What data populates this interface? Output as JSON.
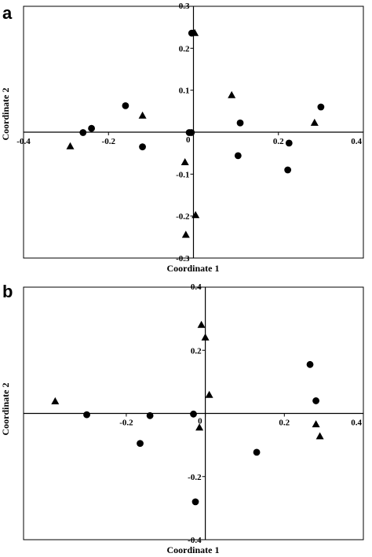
{
  "chart_data": [
    {
      "type": "scatter",
      "panel_label": "a",
      "xlabel": "Coordinate 1",
      "ylabel": "Coordinate 2",
      "xlim": [
        -0.4,
        0.4
      ],
      "ylim": [
        -0.3,
        0.3
      ],
      "x_ticks": [
        -0.4,
        -0.2,
        0,
        0.2,
        0.4
      ],
      "y_ticks": [
        -0.3,
        -0.2,
        -0.1,
        0,
        0.1,
        0.2,
        0.3
      ],
      "x_tick_labels": [
        "-0.4",
        "-0.2",
        "0",
        "0.2",
        "0.4"
      ],
      "y_tick_labels": [
        "-0.3",
        "-0.2",
        "-0.1",
        "0",
        "0.1",
        "0.2",
        "0.3"
      ],
      "series": [
        {
          "marker": "circle",
          "points": [
            [
              -0.004,
              0.236
            ],
            [
              -0.16,
              0.063
            ],
            [
              -0.24,
              0.009
            ],
            [
              -0.26,
              -0.001
            ],
            [
              -0.12,
              -0.035
            ],
            [
              -0.01,
              -0.001
            ],
            [
              -0.005,
              -0.001
            ],
            [
              0.11,
              0.022
            ],
            [
              0.3,
              0.06
            ],
            [
              0.225,
              -0.026
            ],
            [
              0.105,
              -0.056
            ],
            [
              0.222,
              -0.09
            ]
          ]
        },
        {
          "marker": "triangle",
          "points": [
            [
              0.003,
              0.236
            ],
            [
              -0.12,
              0.039
            ],
            [
              -0.29,
              -0.034
            ],
            [
              0.09,
              0.088
            ],
            [
              0.285,
              0.022
            ],
            [
              -0.02,
              -0.072
            ],
            [
              0.005,
              -0.198
            ],
            [
              -0.018,
              -0.245
            ]
          ]
        }
      ]
    },
    {
      "type": "scatter",
      "panel_label": "b",
      "xlabel": "Coordinate 1",
      "ylabel": "Coordinate 2",
      "xlim": [
        -0.46,
        0.4
      ],
      "ylim": [
        -0.4,
        0.4
      ],
      "x_ticks": [
        -0.2,
        0,
        0.2,
        0.4
      ],
      "y_ticks": [
        -0.4,
        -0.2,
        0,
        0.2,
        0.4
      ],
      "x_tick_labels": [
        "-0.2",
        "0",
        "0.2",
        "0.4"
      ],
      "y_tick_labels": [
        "-0.4",
        "-0.2",
        "0",
        "0.2",
        "0.4"
      ],
      "series": [
        {
          "marker": "circle",
          "points": [
            [
              -0.3,
              -0.004
            ],
            [
              -0.14,
              -0.007
            ],
            [
              -0.165,
              -0.095
            ],
            [
              -0.03,
              -0.002
            ],
            [
              -0.025,
              -0.28
            ],
            [
              0.265,
              0.155
            ],
            [
              0.28,
              0.04
            ],
            [
              0.13,
              -0.123
            ]
          ]
        },
        {
          "marker": "triangle",
          "points": [
            [
              -0.38,
              0.038
            ],
            [
              -0.01,
              0.28
            ],
            [
              0.0,
              0.24
            ],
            [
              0.01,
              0.058
            ],
            [
              -0.015,
              -0.045
            ],
            [
              0.28,
              -0.035
            ],
            [
              0.29,
              -0.073
            ]
          ]
        }
      ]
    }
  ]
}
